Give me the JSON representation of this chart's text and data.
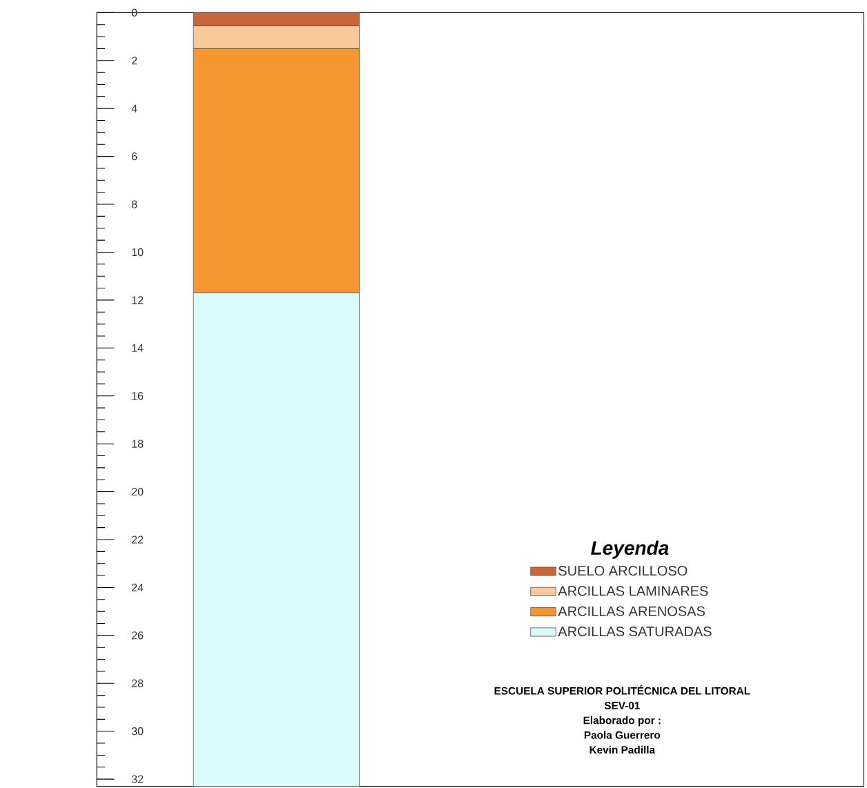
{
  "chart_data": {
    "type": "bar",
    "stacked": true,
    "categories": [
      null
    ],
    "series": [
      {
        "name": "SUELO ARCILLOSO",
        "color": "#c9673a",
        "values": [
          0.55
        ]
      },
      {
        "name": "ARCILLAS LAMINARES",
        "color": "#f9c99b",
        "values": [
          0.95
        ]
      },
      {
        "name": "ARCILLAS ARENOSAS",
        "color": "#f7962f",
        "values": [
          10.2
        ]
      },
      {
        "name": "ARCILLAS SATURADAS",
        "color": "#d9fbfb",
        "values": [
          20.6
        ]
      }
    ],
    "ylim": [
      32.3,
      0
    ],
    "yticks": [
      0,
      2,
      4,
      6,
      8,
      10,
      12,
      14,
      16,
      18,
      20,
      22,
      24,
      26,
      28,
      30,
      32
    ],
    "tick_labels": "y",
    "legend": "bottom right",
    "legend_title": "Leyenda",
    "annotations": [
      "ESCUELA SUPERIOR POLITÉCNICA DEL LITORAL",
      "SEV-01",
      "Elaborado por :",
      "Paola Guerrero",
      "Kevin Padilla"
    ]
  }
}
